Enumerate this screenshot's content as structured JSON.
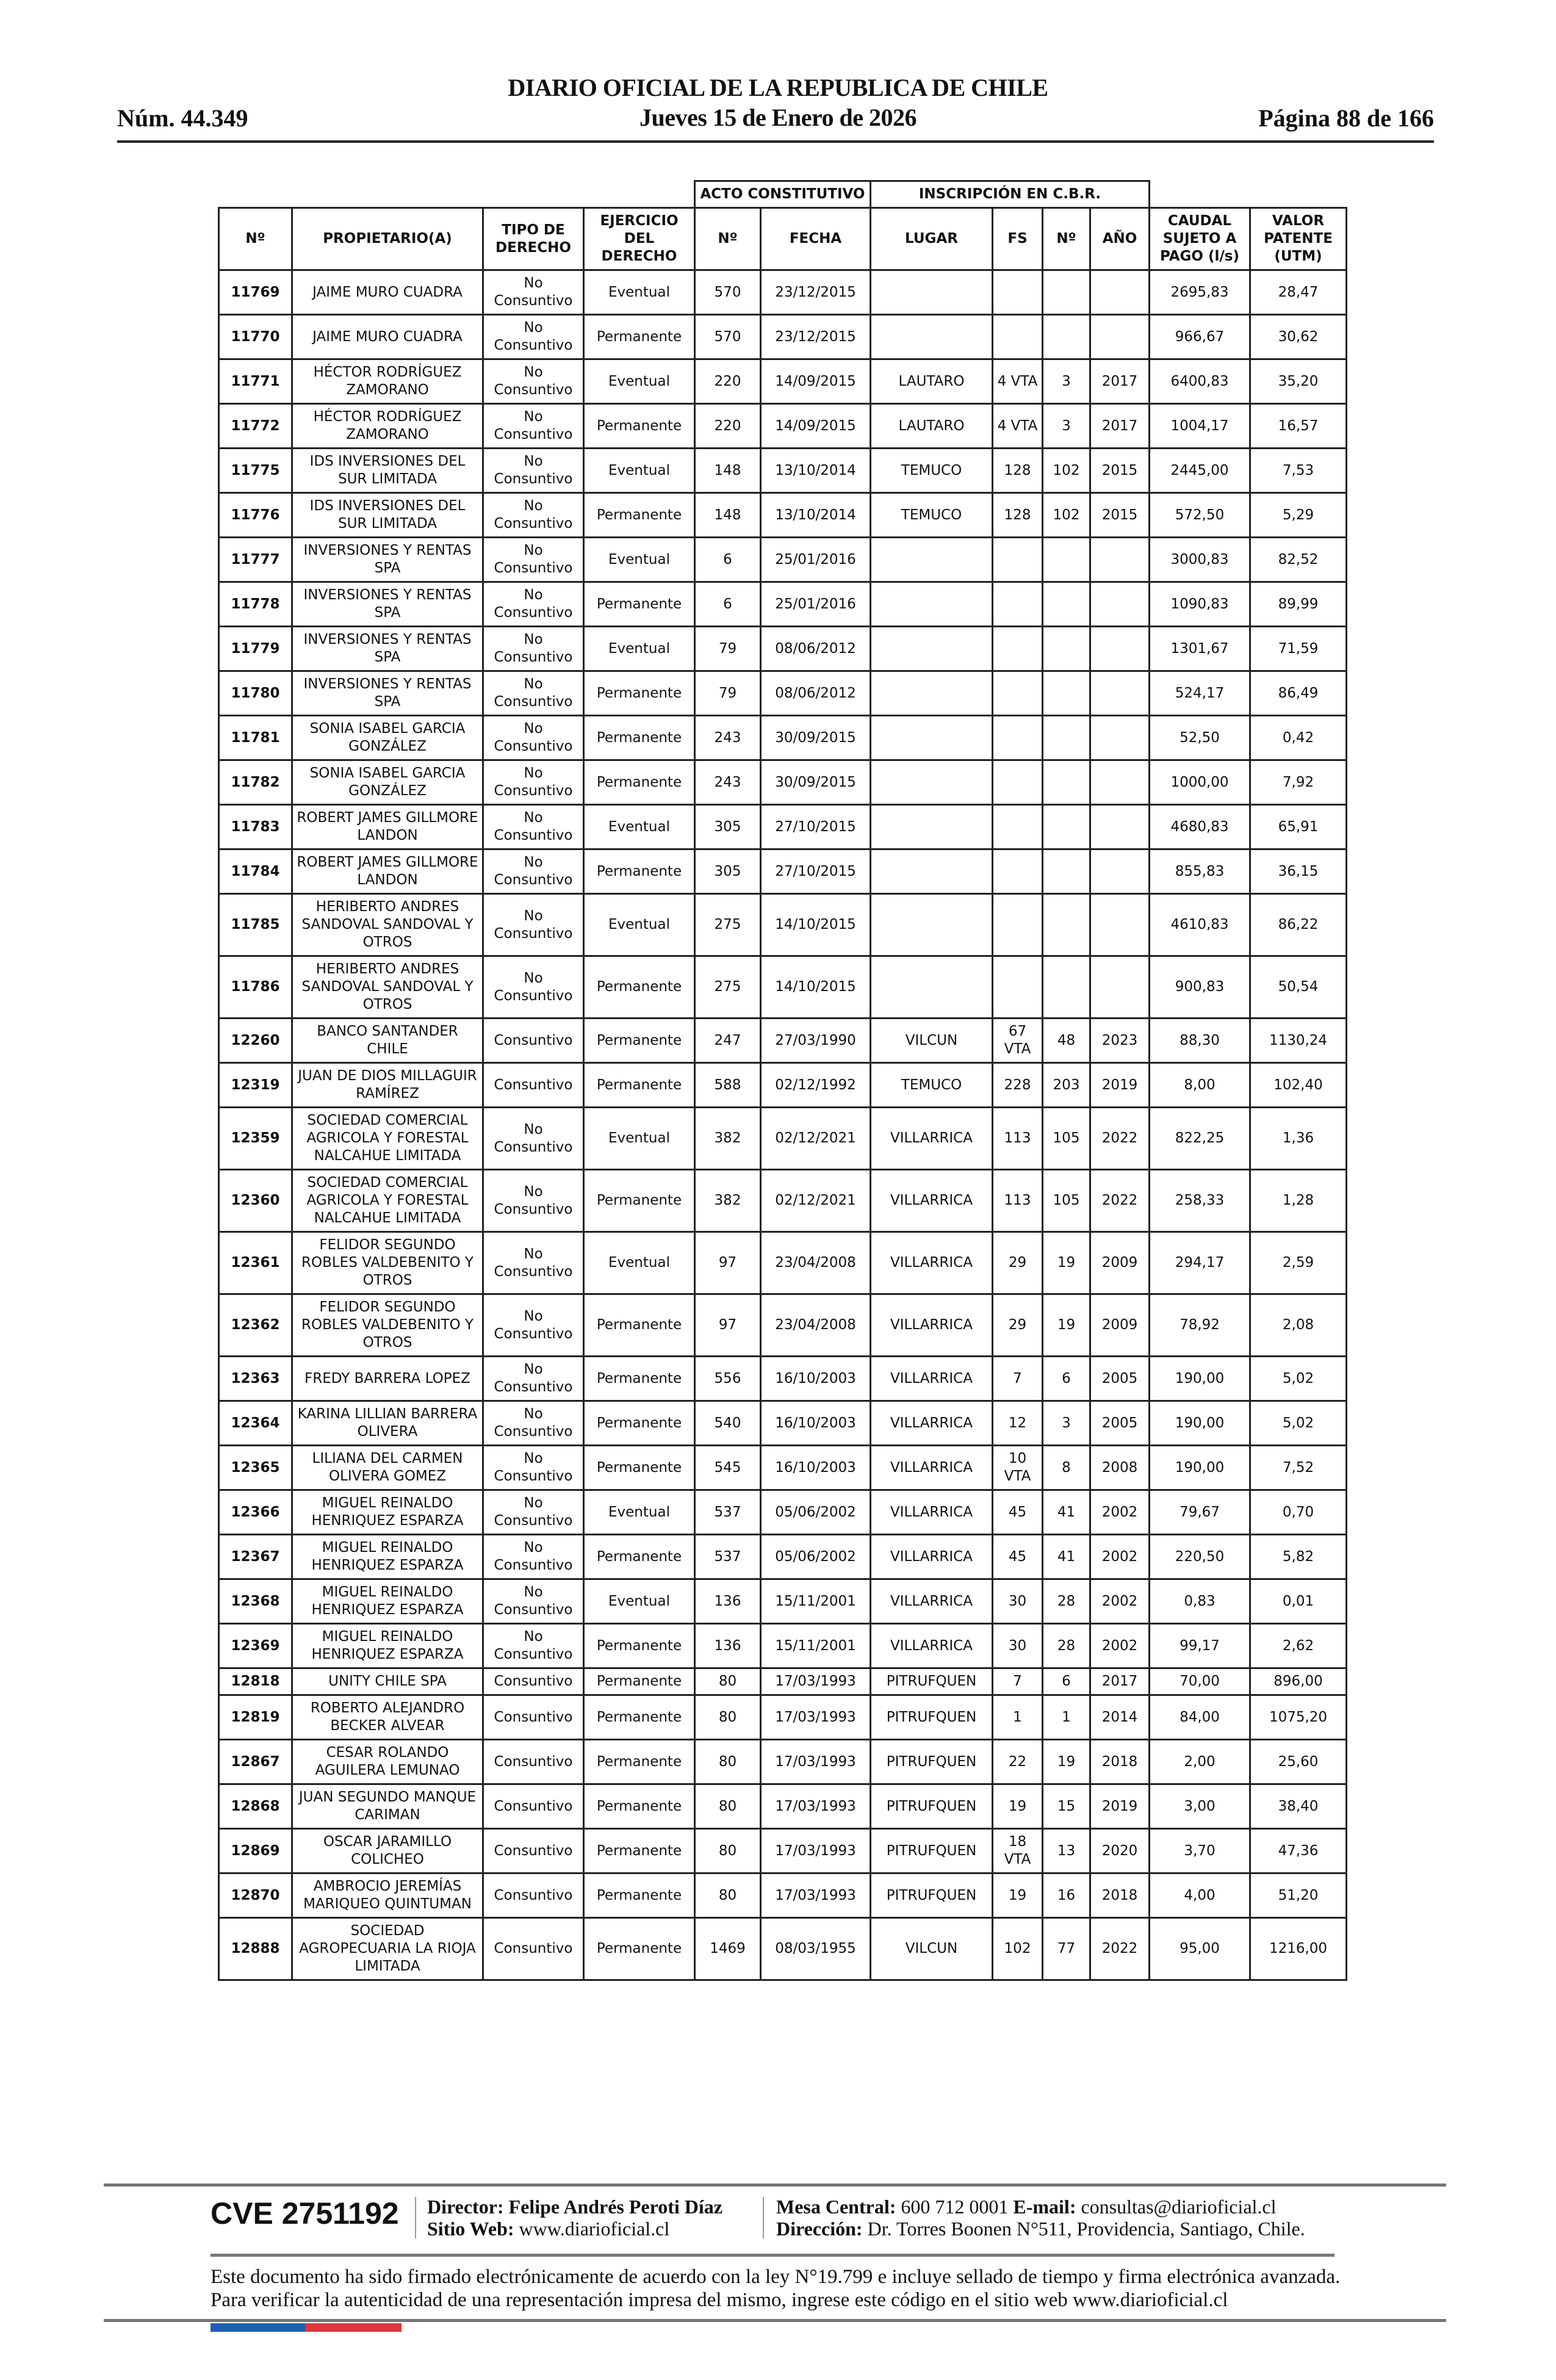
{
  "header": {
    "title": "DIARIO OFICIAL DE LA REPUBLICA DE CHILE",
    "date": "Jueves 15 de Enero de 2026",
    "number": "Núm. 44.349",
    "page": "Página 88 de 166"
  },
  "table": {
    "group_headers": {
      "acto": "ACTO CONSTITUTIVO",
      "inscripcion": "INSCRIPCIÓN EN C.B.R."
    },
    "columns": [
      "Nº",
      "PROPIETARIO(A)",
      "TIPO DE DERECHO",
      "EJERCICIO DEL DERECHO",
      "Nº",
      "FECHA",
      "LUGAR",
      "FS",
      "Nº",
      "AÑO",
      "CAUDAL SUJETO A PAGO (l/s)",
      "VALOR PATENTE (UTM)"
    ],
    "rows": [
      [
        "11769",
        "JAIME MURO CUADRA",
        "No Consuntivo",
        "Eventual",
        "570",
        "23/12/2015",
        "",
        "",
        "",
        "",
        "2695,83",
        "28,47"
      ],
      [
        "11770",
        "JAIME MURO CUADRA",
        "No Consuntivo",
        "Permanente",
        "570",
        "23/12/2015",
        "",
        "",
        "",
        "",
        "966,67",
        "30,62"
      ],
      [
        "11771",
        "HÉCTOR RODRÍGUEZ ZAMORANO",
        "No Consuntivo",
        "Eventual",
        "220",
        "14/09/2015",
        "LAUTARO",
        "4 VTA",
        "3",
        "2017",
        "6400,83",
        "35,20"
      ],
      [
        "11772",
        "HÉCTOR RODRÍGUEZ ZAMORANO",
        "No Consuntivo",
        "Permanente",
        "220",
        "14/09/2015",
        "LAUTARO",
        "4 VTA",
        "3",
        "2017",
        "1004,17",
        "16,57"
      ],
      [
        "11775",
        "IDS INVERSIONES DEL SUR LIMITADA",
        "No Consuntivo",
        "Eventual",
        "148",
        "13/10/2014",
        "TEMUCO",
        "128",
        "102",
        "2015",
        "2445,00",
        "7,53"
      ],
      [
        "11776",
        "IDS INVERSIONES DEL SUR LIMITADA",
        "No Consuntivo",
        "Permanente",
        "148",
        "13/10/2014",
        "TEMUCO",
        "128",
        "102",
        "2015",
        "572,50",
        "5,29"
      ],
      [
        "11777",
        "INVERSIONES Y RENTAS SPA",
        "No Consuntivo",
        "Eventual",
        "6",
        "25/01/2016",
        "",
        "",
        "",
        "",
        "3000,83",
        "82,52"
      ],
      [
        "11778",
        "INVERSIONES Y RENTAS SPA",
        "No Consuntivo",
        "Permanente",
        "6",
        "25/01/2016",
        "",
        "",
        "",
        "",
        "1090,83",
        "89,99"
      ],
      [
        "11779",
        "INVERSIONES Y RENTAS SPA",
        "No Consuntivo",
        "Eventual",
        "79",
        "08/06/2012",
        "",
        "",
        "",
        "",
        "1301,67",
        "71,59"
      ],
      [
        "11780",
        "INVERSIONES Y RENTAS SPA",
        "No Consuntivo",
        "Permanente",
        "79",
        "08/06/2012",
        "",
        "",
        "",
        "",
        "524,17",
        "86,49"
      ],
      [
        "11781",
        "SONIA ISABEL GARCIA GONZÁLEZ",
        "No Consuntivo",
        "Permanente",
        "243",
        "30/09/2015",
        "",
        "",
        "",
        "",
        "52,50",
        "0,42"
      ],
      [
        "11782",
        "SONIA ISABEL GARCIA GONZÁLEZ",
        "No Consuntivo",
        "Permanente",
        "243",
        "30/09/2015",
        "",
        "",
        "",
        "",
        "1000,00",
        "7,92"
      ],
      [
        "11783",
        "ROBERT JAMES GILLMORE LANDON",
        "No Consuntivo",
        "Eventual",
        "305",
        "27/10/2015",
        "",
        "",
        "",
        "",
        "4680,83",
        "65,91"
      ],
      [
        "11784",
        "ROBERT JAMES GILLMORE LANDON",
        "No Consuntivo",
        "Permanente",
        "305",
        "27/10/2015",
        "",
        "",
        "",
        "",
        "855,83",
        "36,15"
      ],
      [
        "11785",
        "HERIBERTO ANDRES SANDOVAL SANDOVAL Y OTROS",
        "No Consuntivo",
        "Eventual",
        "275",
        "14/10/2015",
        "",
        "",
        "",
        "",
        "4610,83",
        "86,22"
      ],
      [
        "11786",
        "HERIBERTO ANDRES SANDOVAL SANDOVAL Y OTROS",
        "No Consuntivo",
        "Permanente",
        "275",
        "14/10/2015",
        "",
        "",
        "",
        "",
        "900,83",
        "50,54"
      ],
      [
        "12260",
        "BANCO SANTANDER CHILE",
        "Consuntivo",
        "Permanente",
        "247",
        "27/03/1990",
        "VILCUN",
        "67 VTA",
        "48",
        "2023",
        "88,30",
        "1130,24"
      ],
      [
        "12319",
        "JUAN DE DIOS MILLAGUIR RAMÍREZ",
        "Consuntivo",
        "Permanente",
        "588",
        "02/12/1992",
        "TEMUCO",
        "228",
        "203",
        "2019",
        "8,00",
        "102,40"
      ],
      [
        "12359",
        "SOCIEDAD COMERCIAL AGRICOLA Y FORESTAL NALCAHUE LIMITADA",
        "No Consuntivo",
        "Eventual",
        "382",
        "02/12/2021",
        "VILLARRICA",
        "113",
        "105",
        "2022",
        "822,25",
        "1,36"
      ],
      [
        "12360",
        "SOCIEDAD COMERCIAL AGRICOLA Y FORESTAL NALCAHUE LIMITADA",
        "No Consuntivo",
        "Permanente",
        "382",
        "02/12/2021",
        "VILLARRICA",
        "113",
        "105",
        "2022",
        "258,33",
        "1,28"
      ],
      [
        "12361",
        "FELIDOR SEGUNDO ROBLES VALDEBENITO Y OTROS",
        "No Consuntivo",
        "Eventual",
        "97",
        "23/04/2008",
        "VILLARRICA",
        "29",
        "19",
        "2009",
        "294,17",
        "2,59"
      ],
      [
        "12362",
        "FELIDOR SEGUNDO ROBLES VALDEBENITO Y OTROS",
        "No Consuntivo",
        "Permanente",
        "97",
        "23/04/2008",
        "VILLARRICA",
        "29",
        "19",
        "2009",
        "78,92",
        "2,08"
      ],
      [
        "12363",
        "FREDY BARRERA LOPEZ",
        "No Consuntivo",
        "Permanente",
        "556",
        "16/10/2003",
        "VILLARRICA",
        "7",
        "6",
        "2005",
        "190,00",
        "5,02"
      ],
      [
        "12364",
        "KARINA LILLIAN BARRERA OLIVERA",
        "No Consuntivo",
        "Permanente",
        "540",
        "16/10/2003",
        "VILLARRICA",
        "12",
        "3",
        "2005",
        "190,00",
        "5,02"
      ],
      [
        "12365",
        "LILIANA DEL CARMEN OLIVERA GOMEZ",
        "No Consuntivo",
        "Permanente",
        "545",
        "16/10/2003",
        "VILLARRICA",
        "10 VTA",
        "8",
        "2008",
        "190,00",
        "7,52"
      ],
      [
        "12366",
        "MIGUEL REINALDO HENRIQUEZ ESPARZA",
        "No Consuntivo",
        "Eventual",
        "537",
        "05/06/2002",
        "VILLARRICA",
        "45",
        "41",
        "2002",
        "79,67",
        "0,70"
      ],
      [
        "12367",
        "MIGUEL REINALDO HENRIQUEZ ESPARZA",
        "No Consuntivo",
        "Permanente",
        "537",
        "05/06/2002",
        "VILLARRICA",
        "45",
        "41",
        "2002",
        "220,50",
        "5,82"
      ],
      [
        "12368",
        "MIGUEL REINALDO HENRIQUEZ ESPARZA",
        "No Consuntivo",
        "Eventual",
        "136",
        "15/11/2001",
        "VILLARRICA",
        "30",
        "28",
        "2002",
        "0,83",
        "0,01"
      ],
      [
        "12369",
        "MIGUEL REINALDO HENRIQUEZ ESPARZA",
        "No Consuntivo",
        "Permanente",
        "136",
        "15/11/2001",
        "VILLARRICA",
        "30",
        "28",
        "2002",
        "99,17",
        "2,62"
      ],
      [
        "12818",
        "UNITY CHILE SPA",
        "Consuntivo",
        "Permanente",
        "80",
        "17/03/1993",
        "PITRUFQUEN",
        "7",
        "6",
        "2017",
        "70,00",
        "896,00"
      ],
      [
        "12819",
        "ROBERTO ALEJANDRO BECKER ALVEAR",
        "Consuntivo",
        "Permanente",
        "80",
        "17/03/1993",
        "PITRUFQUEN",
        "1",
        "1",
        "2014",
        "84,00",
        "1075,20"
      ],
      [
        "12867",
        "CESAR ROLANDO AGUILERA LEMUNAO",
        "Consuntivo",
        "Permanente",
        "80",
        "17/03/1993",
        "PITRUFQUEN",
        "22",
        "19",
        "2018",
        "2,00",
        "25,60"
      ],
      [
        "12868",
        "JUAN SEGUNDO MANQUE CARIMAN",
        "Consuntivo",
        "Permanente",
        "80",
        "17/03/1993",
        "PITRUFQUEN",
        "19",
        "15",
        "2019",
        "3,00",
        "38,40"
      ],
      [
        "12869",
        "OSCAR JARAMILLO COLICHEO",
        "Consuntivo",
        "Permanente",
        "80",
        "17/03/1993",
        "PITRUFQUEN",
        "18 VTA",
        "13",
        "2020",
        "3,70",
        "47,36"
      ],
      [
        "12870",
        "AMBROCIO JEREMÍAS MARIQUEO QUINTUMAN",
        "Consuntivo",
        "Permanente",
        "80",
        "17/03/1993",
        "PITRUFQUEN",
        "19",
        "16",
        "2018",
        "4,00",
        "51,20"
      ],
      [
        "12888",
        "SOCIEDAD AGROPECUARIA LA RIOJA LIMITADA",
        "Consuntivo",
        "Permanente",
        "1469",
        "08/03/1955",
        "VILCUN",
        "102",
        "77",
        "2022",
        "95,00",
        "1216,00"
      ]
    ]
  },
  "footer": {
    "cve": "CVE 2751192",
    "director_label": "Director:",
    "director": "Felipe Andrés Peroti Díaz",
    "web_label": "Sitio Web:",
    "web": "www.diarioficial.cl",
    "mesa_label": "Mesa Central:",
    "mesa": "600 712 0001",
    "email_label": "E-mail:",
    "email": "consultas@diarioficial.cl",
    "address_label": "Dirección:",
    "address": "Dr. Torres Boonen N°511, Providencia, Santiago, Chile.",
    "legal": "Este documento ha sido firmado electrónicamente de acuerdo con la ley N°19.799 e incluye sellado de tiempo y firma electrónica avanzada. Para verificar la autenticidad de una representación impresa del mismo, ingrese este código en el sitio web www.diarioficial.cl"
  },
  "colors": {
    "flag_blue": "#1f5fae",
    "flag_red": "#e3343f",
    "rule": "#777777"
  }
}
